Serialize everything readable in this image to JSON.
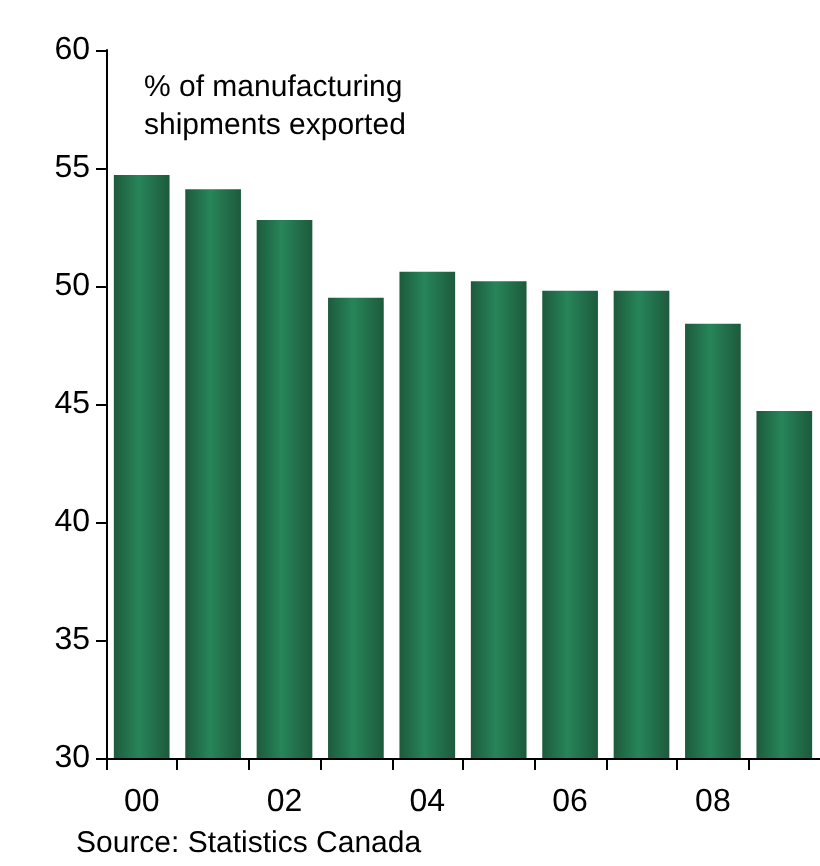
{
  "chart_data": {
    "type": "bar",
    "categories": [
      "00",
      null,
      "02",
      null,
      "04",
      null,
      "06",
      null,
      "08",
      null
    ],
    "values": [
      54.7,
      54.1,
      52.8,
      49.5,
      50.6,
      50.2,
      49.8,
      49.8,
      48.4,
      44.7
    ],
    "color": "#27855a",
    "ylim": [
      30,
      60
    ],
    "yticks": [
      30,
      35,
      40,
      45,
      50,
      55,
      60
    ],
    "grid": false,
    "annotations": [
      "% of manufacturing\nshipments exported",
      "Source: Statistics Canada"
    ]
  }
}
